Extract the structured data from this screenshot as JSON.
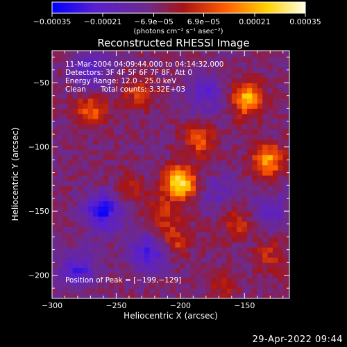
{
  "chart_data": {
    "type": "heatmap",
    "title": "Reconstructed RHESSI Image",
    "xlabel": "Heliocentric X (arcsec)",
    "ylabel": "Heliocentric Y (arcsec)",
    "xlim": [
      -300,
      -115
    ],
    "ylim": [
      -218,
      -25
    ],
    "x_ticks": [
      "−300",
      "−250",
      "−200",
      "−150"
    ],
    "x_tick_values": [
      -300,
      -250,
      -200,
      -150
    ],
    "y_ticks": [
      "−50",
      "−100",
      "−150",
      "−200"
    ],
    "y_tick_values": [
      -50,
      -100,
      -150,
      -200
    ],
    "colorbar": {
      "range": [
        -0.00035,
        0.00035
      ],
      "ticks": [
        "−0.00035",
        "−0.00021",
        "−6.9e−05",
        "6.9e−05",
        "0.00021",
        "0.00035"
      ],
      "tick_values": [
        -0.00035,
        -0.00021,
        -6.9e-05,
        6.9e-05,
        0.00021,
        0.00035
      ],
      "colors": [
        "#0000ff",
        "#5a1fd0",
        "#6e2a8a",
        "#a81414",
        "#ff5a00",
        "#ffd200",
        "#ffffe8"
      ]
    },
    "colorbar_unit": "(photons cm⁻² s⁻¹ asec⁻²)",
    "annotations": {
      "time_range": "11-Mar-2004 04:09:44.000 to 04:14:32.000",
      "detectors": "Detectors: 3F 4F 5F 6F 7F 8F, Att 0",
      "energy": "Energy Range: 12.0 - 25.0 keV",
      "method": "Clean",
      "counts": "Total counts: 3.32E+03",
      "peak": "Position of Peak = [−199,−129]"
    },
    "sources": [
      {
        "x": -200,
        "y": -128,
        "flux": 0.00035
      },
      {
        "x": -148,
        "y": -62,
        "flux": 0.00028
      },
      {
        "x": -132,
        "y": -110,
        "flux": 0.00025
      },
      {
        "x": -270,
        "y": -72,
        "flux": 0.00018
      },
      {
        "x": -185,
        "y": -95,
        "flux": 0.00016
      },
      {
        "x": -232,
        "y": -58,
        "flux": 0.00012
      },
      {
        "x": -205,
        "y": -172,
        "flux": 0.00014
      },
      {
        "x": -155,
        "y": -158,
        "flux": 0.00012
      },
      {
        "x": -240,
        "y": -132,
        "flux": 9e-05
      },
      {
        "x": -215,
        "y": -152,
        "flux": 0.00011
      },
      {
        "x": -130,
        "y": -185,
        "flux": 0.0001
      },
      {
        "x": -165,
        "y": -210,
        "flux": 8e-05
      },
      {
        "x": -260,
        "y": -150,
        "flux": -0.00025
      },
      {
        "x": -225,
        "y": -182,
        "flux": -0.0002
      },
      {
        "x": -280,
        "y": -195,
        "flux": -0.00018
      },
      {
        "x": -270,
        "y": -40,
        "flux": -0.00015
      },
      {
        "x": -180,
        "y": -58,
        "flux": -0.00014
      },
      {
        "x": -130,
        "y": -150,
        "flux": -0.00012
      },
      {
        "x": -170,
        "y": -135,
        "flux": -0.0001
      }
    ]
  },
  "footer": {
    "date": "29-Apr-2022 09:44"
  }
}
